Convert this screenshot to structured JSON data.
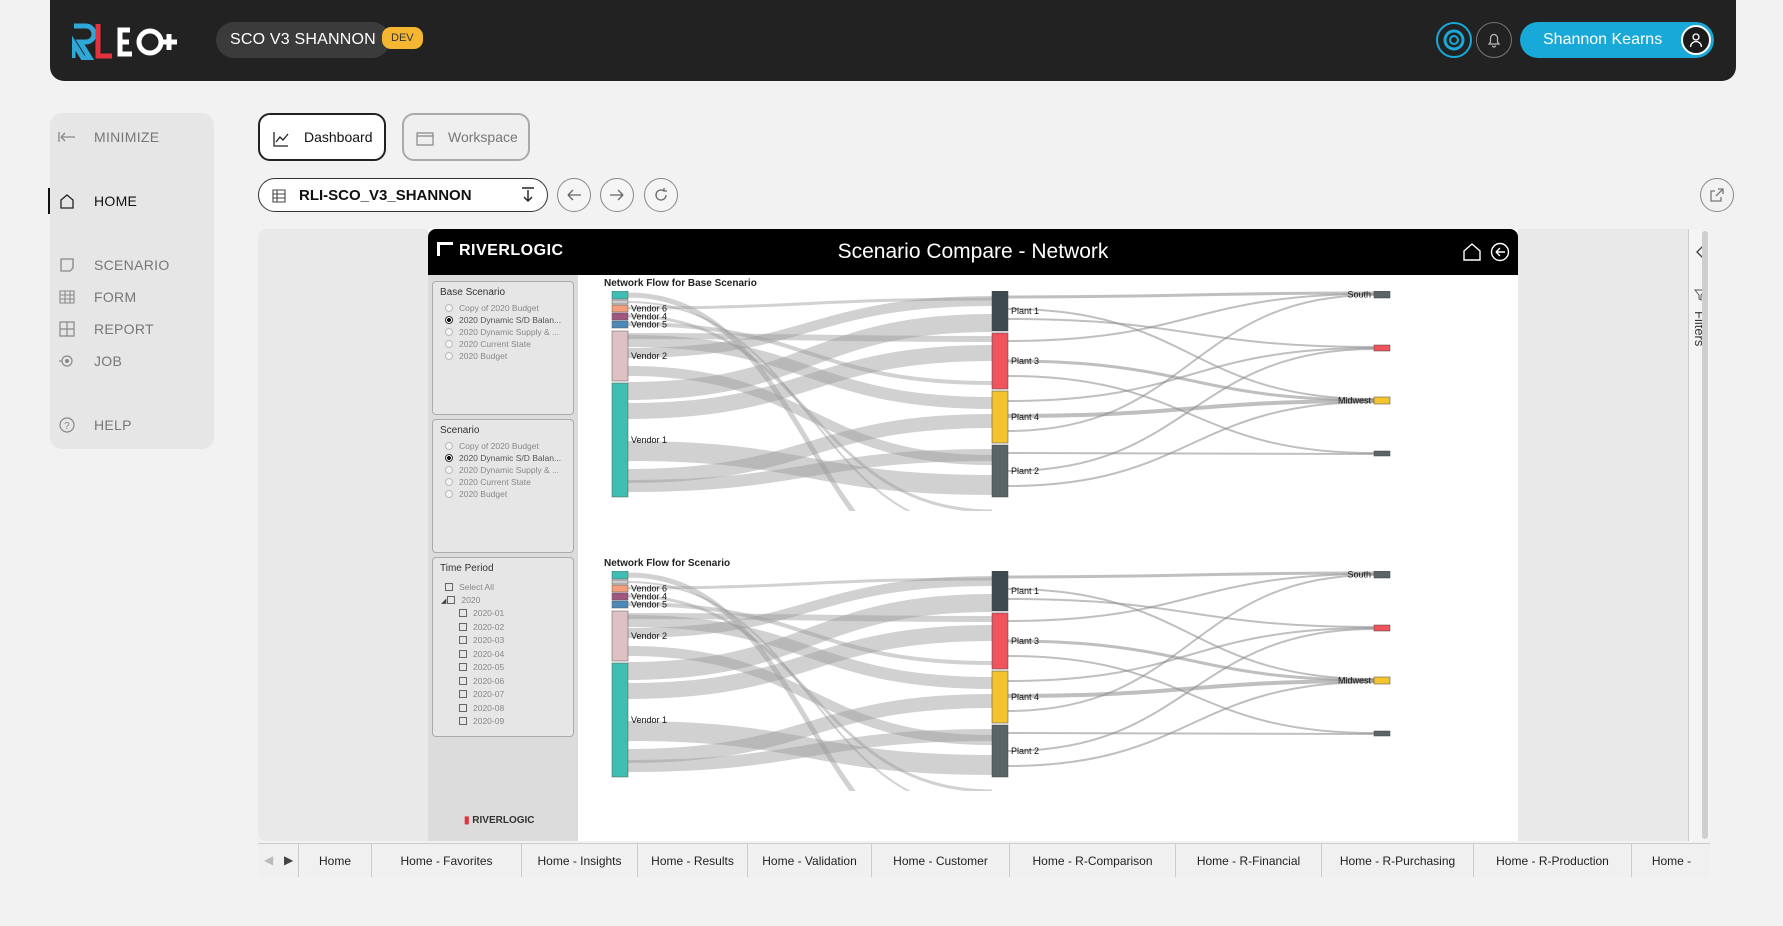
{
  "header": {
    "env_name": "SCO V3 SHANNON",
    "env_badge": "DEV",
    "user_name": "Shannon Kearns",
    "accent_color": "#19a9d8",
    "badge_color": "#f5b731"
  },
  "sidebar": {
    "items": [
      {
        "label": "MINIMIZE",
        "icon": "collapse-arrow-icon"
      },
      {
        "label": "HOME",
        "icon": "home-icon"
      },
      {
        "label": "SCENARIO",
        "icon": "scenario-icon"
      },
      {
        "label": "FORM",
        "icon": "table-icon"
      },
      {
        "label": "REPORT",
        "icon": "report-icon"
      },
      {
        "label": "JOB",
        "icon": "job-icon"
      },
      {
        "label": "HELP",
        "icon": "help-icon"
      }
    ]
  },
  "view_tabs": {
    "dashboard": "Dashboard",
    "workspace": "Workspace"
  },
  "workspace_selector": {
    "value": "RLI-SCO_V3_SHANNON"
  },
  "report": {
    "brand": "RIVERLOGIC",
    "title": "Scenario Compare - Network",
    "footer_brand": "RIVERLOGIC",
    "filters_label": "Filters",
    "base_scenario": {
      "heading": "Base Scenario",
      "options": [
        "Copy of 2020 Budget",
        "2020 Dynamic S/D Balan...",
        "2020 Dynamic Supply & ...",
        "2020 Current State",
        "2020 Budget"
      ],
      "selected": 1
    },
    "scenario": {
      "heading": "Scenario",
      "options": [
        "Copy of 2020 Budget",
        "2020 Dynamic S/D Balan...",
        "2020 Dynamic Supply & ...",
        "2020 Current State",
        "2020 Budget"
      ],
      "selected": 1
    },
    "time_period": {
      "heading": "Time Period",
      "select_all": "Select All",
      "year": "2020",
      "months": [
        "2020-01",
        "2020-02",
        "2020-03",
        "2020-04",
        "2020-05",
        "2020-06",
        "2020-07",
        "2020-08",
        "2020-09"
      ]
    },
    "chart_base_title": "Network Flow for Base Scenario",
    "chart_scenario_title": "Network Flow for Scenario",
    "vendors": [
      "Vendor 6",
      "Vendor 4",
      "Vendor 5",
      "Vendor 2",
      "Vendor 1"
    ],
    "plants": [
      "Plant 1",
      "Plant 3",
      "Plant 4",
      "Plant 2"
    ],
    "regions": [
      "South",
      "Midwest"
    ],
    "colors": {
      "vendor_teal": "#3fbfb3",
      "vendor6": "#f2a07b",
      "vendor4": "#a0567e",
      "vendor5": "#4b8ab8",
      "vendor2": "#dec1c3",
      "plant1": "#3d4a4f",
      "plant3": "#f0535c",
      "plant4": "#f4c430",
      "plant2": "#5a6568"
    }
  },
  "page_tabs": [
    "Home",
    "Home - Favorites",
    "Home - Insights",
    "Home - Results",
    "Home - Validation",
    "Home - Customer",
    "Home - R-Comparison",
    "Home - R-Financial",
    "Home - R-Purchasing",
    "Home - R-Production",
    "Home -"
  ]
}
